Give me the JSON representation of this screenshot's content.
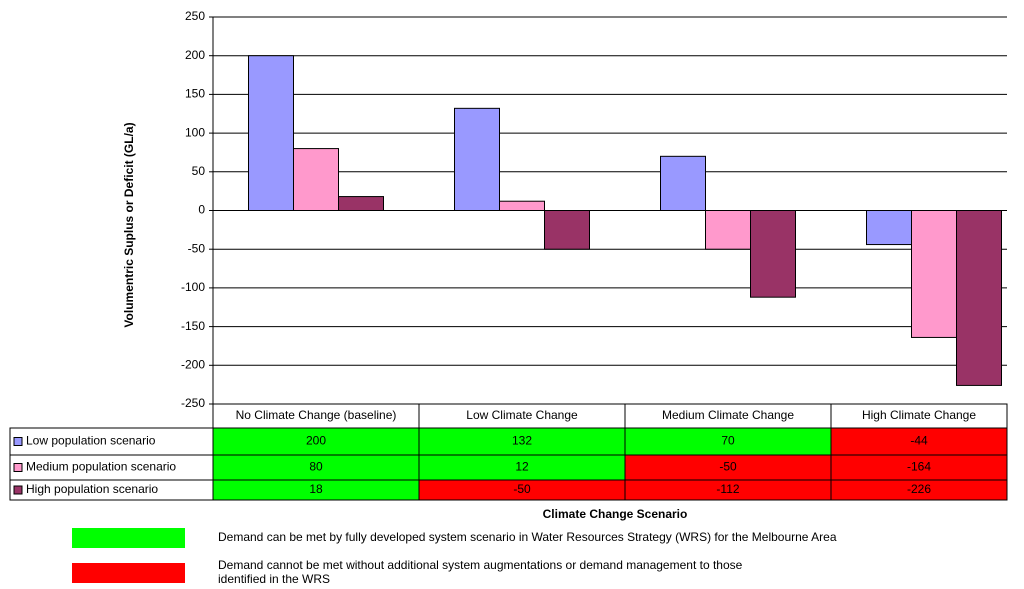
{
  "chart_data": {
    "type": "bar",
    "y_label": "Volumentric Suplus or Deficit  (GL/a)",
    "x_label": "Climate Change Scenario",
    "categories": [
      "No Climate Change (baseline)",
      "Low Climate Change",
      "Medium Climate Change",
      "High Climate Change"
    ],
    "series": [
      {
        "name": "Low population scenario",
        "color": "#9999ff",
        "values": [
          200,
          132,
          70,
          -44
        ],
        "cell_colors": [
          "#00ff00",
          "#00ff00",
          "#00ff00",
          "#ff0000"
        ]
      },
      {
        "name": "Medium population scenario",
        "color": "#ff99cc",
        "values": [
          80,
          12,
          -50,
          -164
        ],
        "cell_colors": [
          "#00ff00",
          "#00ff00",
          "#ff0000",
          "#ff0000"
        ]
      },
      {
        "name": "High population scenario",
        "color": "#993366",
        "values": [
          18,
          -50,
          -112,
          -226
        ],
        "cell_colors": [
          "#00ff00",
          "#ff0000",
          "#ff0000",
          "#ff0000"
        ]
      }
    ],
    "ylim": [
      -250,
      250
    ],
    "yticks": [
      -250,
      -200,
      -150,
      -100,
      -50,
      0,
      50,
      100,
      150,
      200,
      250
    ],
    "grid": true,
    "key": [
      {
        "color": "#00ff00",
        "lines": [
          "Demand can be met by fully developed system scenario in Water Resources Strategy (WRS) for the Melbourne Area"
        ]
      },
      {
        "color": "#ff0000",
        "lines": [
          "Demand cannot be met without additional system augmentations or demand management to those",
          "identified in the WRS"
        ]
      }
    ]
  }
}
